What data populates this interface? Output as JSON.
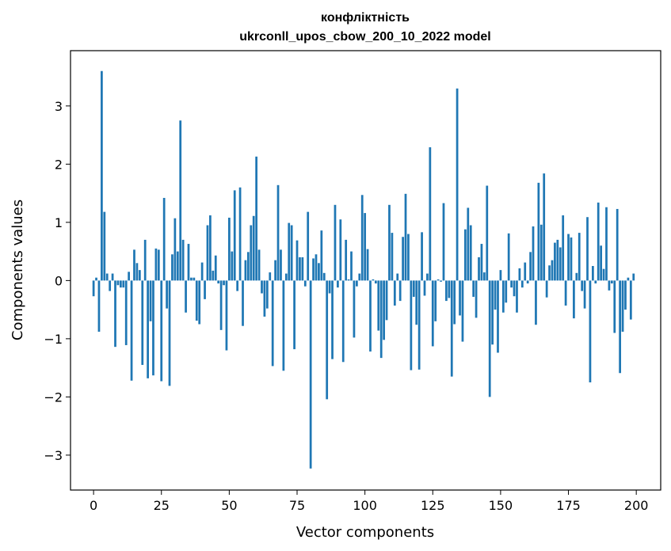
{
  "chart_data": {
    "type": "bar",
    "title": "конфліктність",
    "subtitle": "ukrconll_upos_cbow_200_10_2022 model",
    "xlabel": "Vector components",
    "ylabel": "Components values",
    "xlim": [
      -8.5,
      209
    ],
    "ylim": [
      -3.6,
      3.95
    ],
    "xticks": [
      0,
      25,
      50,
      75,
      100,
      125,
      150,
      175,
      200
    ],
    "xtick_labels": [
      "0",
      "25",
      "50",
      "75",
      "100",
      "125",
      "150",
      "175",
      "200"
    ],
    "yticks": [
      -3,
      -2,
      -1,
      0,
      1,
      2,
      3
    ],
    "ytick_labels": [
      "−3",
      "−2",
      "−1",
      "0",
      "1",
      "2",
      "3"
    ],
    "grid": false,
    "color": "#1f77b4",
    "x": [
      0,
      1,
      2,
      3,
      4,
      5,
      6,
      7,
      8,
      9,
      10,
      11,
      12,
      13,
      14,
      15,
      16,
      17,
      18,
      19,
      20,
      21,
      22,
      23,
      24,
      25,
      26,
      27,
      28,
      29,
      30,
      31,
      32,
      33,
      34,
      35,
      36,
      37,
      38,
      39,
      40,
      41,
      42,
      43,
      44,
      45,
      46,
      47,
      48,
      49,
      50,
      51,
      52,
      53,
      54,
      55,
      56,
      57,
      58,
      59,
      60,
      61,
      62,
      63,
      64,
      65,
      66,
      67,
      68,
      69,
      70,
      71,
      72,
      73,
      74,
      75,
      76,
      77,
      78,
      79,
      80,
      81,
      82,
      83,
      84,
      85,
      86,
      87,
      88,
      89,
      90,
      91,
      92,
      93,
      94,
      95,
      96,
      97,
      98,
      99,
      100,
      101,
      102,
      103,
      104,
      105,
      106,
      107,
      108,
      109,
      110,
      111,
      112,
      113,
      114,
      115,
      116,
      117,
      118,
      119,
      120,
      121,
      122,
      123,
      124,
      125,
      126,
      127,
      128,
      129,
      130,
      131,
      132,
      133,
      134,
      135,
      136,
      137,
      138,
      139,
      140,
      141,
      142,
      143,
      144,
      145,
      146,
      147,
      148,
      149,
      150,
      151,
      152,
      153,
      154,
      155,
      156,
      157,
      158,
      159,
      160,
      161,
      162,
      163,
      164,
      165,
      166,
      167,
      168,
      169,
      170,
      171,
      172,
      173,
      174,
      175,
      176,
      177,
      178,
      179,
      180,
      181,
      182,
      183,
      184,
      185,
      186,
      187,
      188,
      189,
      190,
      191,
      192,
      193,
      194,
      195,
      196,
      197,
      198,
      199
    ],
    "values": [
      -0.27,
      0.05,
      -0.88,
      3.6,
      1.18,
      0.12,
      -0.18,
      0.12,
      -1.14,
      -0.08,
      -0.12,
      -0.12,
      -1.11,
      0.15,
      -1.72,
      0.53,
      0.3,
      0.18,
      -1.45,
      0.7,
      -1.68,
      -0.7,
      -1.63,
      0.55,
      0.53,
      -1.73,
      1.42,
      -0.48,
      -1.81,
      0.45,
      1.07,
      0.5,
      2.75,
      0.7,
      -0.55,
      0.63,
      0.05,
      0.05,
      -0.69,
      -0.75,
      0.31,
      -0.32,
      0.95,
      1.12,
      0.17,
      0.43,
      -0.05,
      -0.85,
      -0.08,
      -1.2,
      1.08,
      0.5,
      1.55,
      -0.18,
      1.6,
      -0.78,
      0.35,
      0.49,
      0.95,
      1.11,
      2.13,
      0.53,
      -0.22,
      -0.62,
      -0.48,
      0.14,
      -1.47,
      0.35,
      1.64,
      0.53,
      -1.55,
      0.12,
      0.99,
      0.95,
      -1.18,
      0.69,
      0.4,
      0.4,
      -0.1,
      1.18,
      -3.23,
      0.38,
      0.45,
      0.3,
      0.86,
      0.13,
      -2.04,
      -0.22,
      -1.35,
      1.3,
      -0.12,
      1.05,
      -1.4,
      0.7,
      0.02,
      0.5,
      -0.98,
      -0.1,
      0.12,
      1.47,
      1.16,
      0.54,
      -1.22,
      0.02,
      -0.05,
      -0.86,
      -1.33,
      -1.02,
      -0.68,
      1.3,
      0.82,
      -0.43,
      0.12,
      -0.35,
      0.75,
      1.49,
      0.8,
      -1.54,
      -0.28,
      -0.76,
      -1.53,
      0.83,
      -0.26,
      0.12,
      2.29,
      -1.13,
      -0.7,
      0.02,
      -0.02,
      1.33,
      -0.35,
      -0.3,
      -1.65,
      -0.75,
      3.3,
      -0.6,
      -1.05,
      0.88,
      1.25,
      0.95,
      -0.28,
      -0.64,
      0.4,
      0.63,
      0.14,
      1.63,
      -2.0,
      -1.1,
      -0.5,
      -1.24,
      0.18,
      -0.55,
      -0.38,
      0.81,
      -0.12,
      -0.27,
      -0.55,
      0.21,
      -0.12,
      0.31,
      -0.05,
      0.49,
      0.93,
      -0.76,
      1.68,
      0.96,
      1.84,
      -0.29,
      0.26,
      0.35,
      0.65,
      0.7,
      0.57,
      1.12,
      -0.43,
      0.8,
      0.74,
      -0.65,
      0.13,
      0.82,
      -0.18,
      -0.48,
      1.09,
      -1.75,
      0.25,
      -0.05,
      1.34,
      0.6,
      0.2,
      1.26,
      -0.17,
      -0.05,
      -0.9,
      1.23,
      -1.59,
      -0.88,
      -0.5,
      0.05,
      -0.67,
      0.12
    ]
  }
}
